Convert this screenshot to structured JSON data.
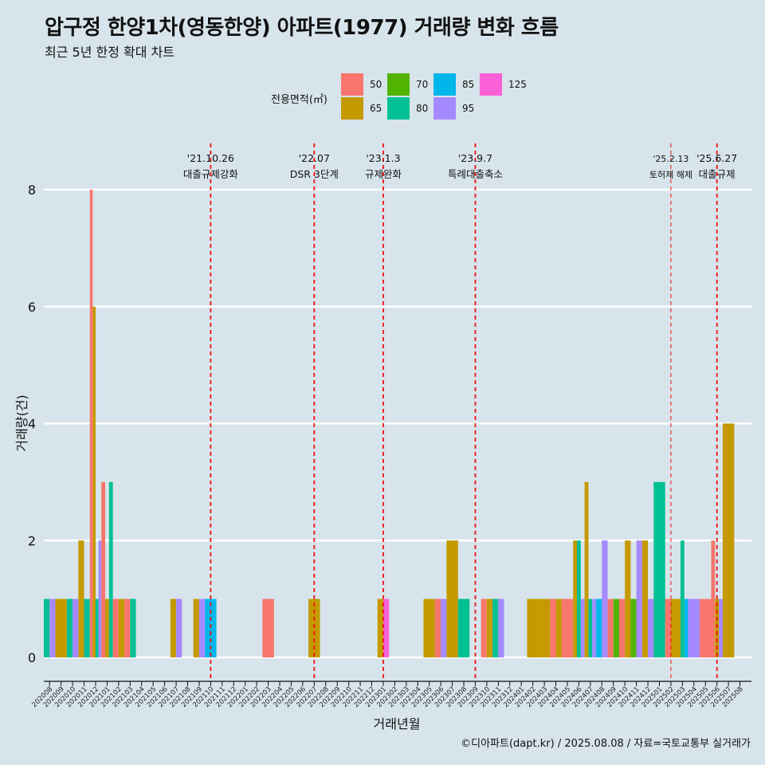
{
  "title": "압구정 한양1차(영동한양) 아파트(1977) 거래량 변화 흐름",
  "subtitle": "최근 5년 한정 확대 차트",
  "caption": "©디아파트(dapt.kr) / 2025.08.08 / 자료=국토교통부 실거래가",
  "legend": {
    "title": "전용면적(㎡)",
    "items": [
      {
        "label": "50",
        "color": "#f8766d"
      },
      {
        "label": "65",
        "color": "#c49a00"
      },
      {
        "label": "70",
        "color": "#53b400"
      },
      {
        "label": "80",
        "color": "#00c094"
      },
      {
        "label": "85",
        "color": "#00b6eb"
      },
      {
        "label": "95",
        "color": "#a58aff"
      },
      {
        "label": "125",
        "color": "#fb61d7"
      }
    ]
  },
  "chart_data": {
    "type": "bar",
    "xlabel": "거래년월",
    "ylabel": "거래량(건)",
    "ylim": [
      0,
      8
    ],
    "yticks": [
      0,
      2,
      4,
      6,
      8
    ],
    "grid": true,
    "categories": [
      "202008",
      "202009",
      "202010",
      "202011",
      "202012",
      "202101",
      "202102",
      "202103",
      "202104",
      "202105",
      "202106",
      "202107",
      "202108",
      "202109",
      "202110",
      "202111",
      "202112",
      "202201",
      "202202",
      "202203",
      "202204",
      "202205",
      "202206",
      "202207",
      "202208",
      "202209",
      "202210",
      "202211",
      "202212",
      "202301",
      "202302",
      "202303",
      "202304",
      "202305",
      "202306",
      "202307",
      "202308",
      "202309",
      "202310",
      "202311",
      "202312",
      "202401",
      "202402",
      "202403",
      "202404",
      "202405",
      "202406",
      "202407",
      "202408",
      "202409",
      "202410",
      "202411",
      "202412",
      "202501",
      "202502",
      "202503",
      "202504",
      "202505",
      "202506",
      "202507",
      "202508"
    ],
    "series": [
      {
        "name": "50",
        "values": [
          0,
          0,
          0,
          0,
          8,
          3,
          1,
          1,
          0,
          0,
          0,
          0,
          0,
          0,
          0,
          0,
          0,
          0,
          0,
          1,
          0,
          0,
          0,
          0,
          0,
          0,
          0,
          0,
          0,
          0,
          0,
          0,
          0,
          0,
          1,
          0,
          0,
          0,
          1,
          0,
          0,
          0,
          0,
          0,
          1,
          1,
          0,
          0,
          0,
          1,
          1,
          0,
          0,
          0,
          1,
          0,
          0,
          1,
          2,
          0,
          0
        ]
      },
      {
        "name": "65",
        "values": [
          0,
          1,
          0,
          2,
          6,
          1,
          1,
          0,
          0,
          0,
          0,
          1,
          0,
          1,
          0,
          0,
          0,
          0,
          0,
          0,
          0,
          0,
          0,
          1,
          0,
          0,
          0,
          0,
          0,
          1,
          0,
          0,
          0,
          1,
          0,
          2,
          0,
          0,
          1,
          0,
          0,
          0,
          1,
          1,
          1,
          0,
          2,
          3,
          0,
          0,
          2,
          0,
          2,
          0,
          1,
          1,
          0,
          0,
          1,
          4,
          0
        ]
      },
      {
        "name": "70",
        "values": [
          0,
          0,
          0,
          0,
          0,
          0,
          0,
          0,
          0,
          0,
          0,
          0,
          0,
          0,
          0,
          0,
          0,
          0,
          0,
          0,
          0,
          0,
          0,
          0,
          0,
          0,
          0,
          0,
          0,
          0,
          0,
          0,
          0,
          0,
          0,
          0,
          0,
          0,
          0,
          0,
          0,
          0,
          0,
          0,
          0,
          0,
          0,
          0,
          0,
          1,
          0,
          1,
          0,
          0,
          0,
          0,
          0,
          0,
          0,
          0,
          0
        ]
      },
      {
        "name": "80",
        "values": [
          1,
          0,
          1,
          1,
          1,
          3,
          0,
          1,
          0,
          0,
          0,
          0,
          0,
          0,
          0,
          0,
          0,
          0,
          0,
          0,
          0,
          0,
          0,
          0,
          0,
          0,
          0,
          0,
          0,
          0,
          0,
          0,
          0,
          0,
          0,
          0,
          1,
          0,
          0,
          1,
          0,
          0,
          0,
          0,
          0,
          0,
          2,
          1,
          0,
          0,
          0,
          0,
          0,
          3,
          0,
          2,
          0,
          0,
          0,
          0,
          0
        ]
      },
      {
        "name": "85",
        "values": [
          0,
          0,
          0,
          0,
          0,
          0,
          0,
          0,
          0,
          0,
          0,
          0,
          0,
          0,
          1,
          0,
          0,
          0,
          0,
          0,
          0,
          0,
          0,
          0,
          0,
          0,
          0,
          0,
          0,
          0,
          0,
          0,
          0,
          0,
          0,
          0,
          0,
          0,
          0,
          0,
          0,
          0,
          0,
          0,
          0,
          0,
          0,
          0,
          1,
          0,
          0,
          0,
          0,
          0,
          0,
          1,
          0,
          0,
          0,
          0,
          0
        ]
      },
      {
        "name": "95",
        "values": [
          1,
          0,
          1,
          0,
          2,
          0,
          0,
          0,
          0,
          0,
          0,
          1,
          0,
          1,
          0,
          0,
          0,
          0,
          0,
          0,
          0,
          0,
          0,
          0,
          0,
          0,
          0,
          0,
          0,
          0,
          0,
          0,
          0,
          0,
          1,
          0,
          0,
          0,
          0,
          1,
          0,
          0,
          0,
          0,
          0,
          0,
          1,
          1,
          2,
          0,
          0,
          2,
          1,
          0,
          0,
          0,
          1,
          0,
          1,
          0,
          0
        ]
      },
      {
        "name": "125",
        "values": [
          0,
          0,
          0,
          0,
          0,
          0,
          0,
          0,
          0,
          0,
          0,
          0,
          0,
          0,
          0,
          0,
          0,
          0,
          0,
          0,
          0,
          0,
          0,
          0,
          0,
          0,
          0,
          0,
          0,
          1,
          0,
          0,
          0,
          0,
          0,
          0,
          0,
          0,
          0,
          0,
          0,
          0,
          0,
          0,
          0,
          0,
          0,
          0,
          0,
          0,
          0,
          0,
          0,
          0,
          0,
          0,
          0,
          0,
          0,
          0,
          0
        ]
      }
    ],
    "annotations": [
      {
        "x": "202110",
        "line1": "'21.10.26",
        "line2": "대출규제강화"
      },
      {
        "x": "202207",
        "line1": "'22.07",
        "line2": "DSR 3단계"
      },
      {
        "x": "202301",
        "line1": "'23.1.3",
        "line2": "규제완화"
      },
      {
        "x": "202309",
        "line1": "'23.9.7",
        "line2": "특례대출축소"
      },
      {
        "x": "202502",
        "line1": "'25.2.13",
        "line2": "토허제 해제"
      },
      {
        "x": "202506",
        "line1": "'25.6.27",
        "line2": "대출규제"
      }
    ]
  }
}
